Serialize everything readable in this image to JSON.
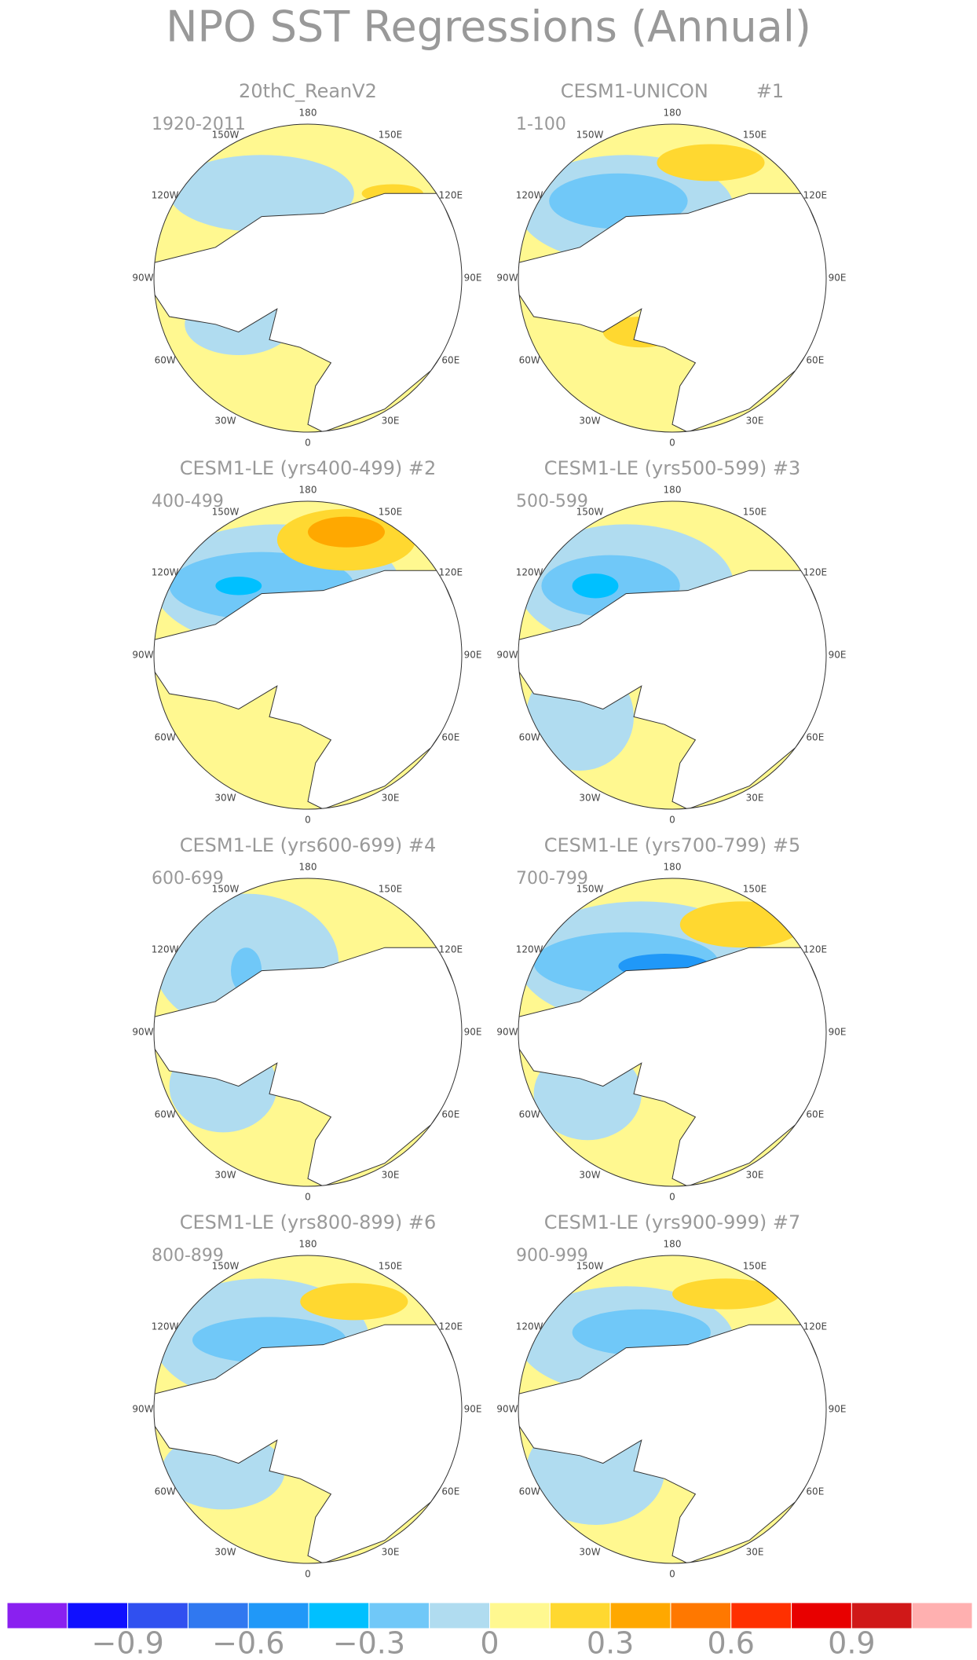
{
  "title": "NPO SST Regressions (Annual)",
  "lon_labels": [
    "180",
    "150E",
    "120E",
    "90E",
    "60E",
    "30E",
    "0",
    "30W",
    "60W",
    "90W",
    "120W",
    "150W"
  ],
  "panels": [
    {
      "title": "20thC_ReanV2",
      "period": "1920-2011"
    },
    {
      "title": "CESM1-UNICON        #1",
      "period": "1-100"
    },
    {
      "title": "CESM1-LE (yrs400-499) #2",
      "period": "400-499"
    },
    {
      "title": "CESM1-LE (yrs500-599) #3",
      "period": "500-599"
    },
    {
      "title": "CESM1-LE (yrs600-699) #4",
      "period": "600-699"
    },
    {
      "title": "CESM1-LE (yrs700-799) #5",
      "period": "700-799"
    },
    {
      "title": "CESM1-LE (yrs800-899) #6",
      "period": "800-899"
    },
    {
      "title": "CESM1-LE (yrs900-999) #7",
      "period": "900-999"
    }
  ],
  "colorbar": {
    "colors": [
      "#8a20f0",
      "#1010ff",
      "#3050f0",
      "#3078f0",
      "#2098f8",
      "#00c0ff",
      "#70c8f8",
      "#b0dcf0",
      "#fff890",
      "#ffd830",
      "#ffa800",
      "#ff7800",
      "#ff3000",
      "#e80000",
      "#d01818",
      "#ffb0b0"
    ],
    "ticks": [
      {
        "value": -0.9,
        "label": "−0.9"
      },
      {
        "value": -0.6,
        "label": "−0.6"
      },
      {
        "value": -0.3,
        "label": "−0.3"
      },
      0,
      0.3,
      0.6,
      0.9
    ]
  }
}
